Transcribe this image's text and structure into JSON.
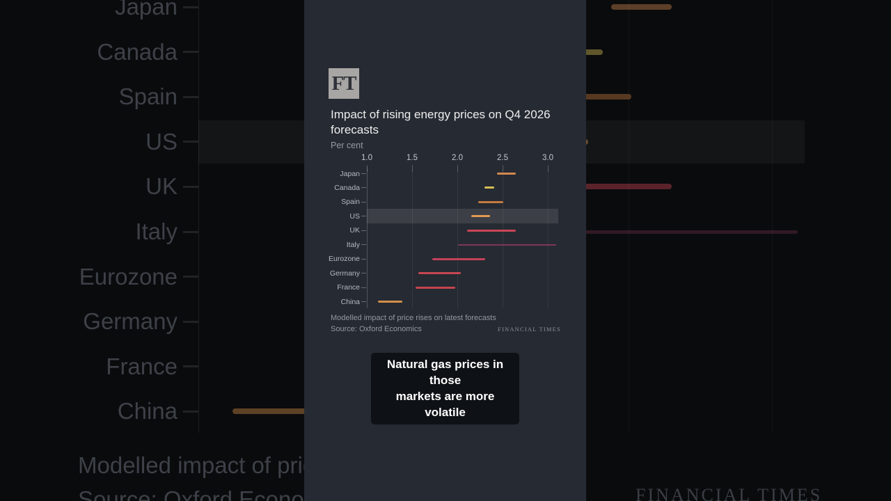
{
  "panel": {
    "logo_text": "FT",
    "title": "Impact of rising energy prices on Q4 2026 forecasts",
    "subtitle": "Per cent",
    "note": "Modelled impact of price rises on latest forecasts",
    "source": "Source: Oxford Economics",
    "brand_footer": "FINANCIAL TIMES"
  },
  "caption": {
    "line1": "Natural gas prices in those",
    "line2": "markets are more volatile"
  },
  "chart_data": {
    "type": "bar",
    "subtype": "horizontal-range",
    "title": "Impact of rising energy prices on Q4 2026 forecasts",
    "unit_label": "Per cent",
    "note": "Modelled impact of price rises on latest forecasts",
    "source": "Oxford Economics",
    "xlim": [
      1.0,
      3.0
    ],
    "x_ticks": [
      1.0,
      1.5,
      2.0,
      2.5,
      3.0
    ],
    "grid": "vertical",
    "legend": "none",
    "highlighted_category": "US",
    "thin_categories": [
      "Italy"
    ],
    "categories": [
      "Japan",
      "Canada",
      "Spain",
      "US",
      "UK",
      "Italy",
      "Eurozone",
      "Germany",
      "France",
      "China"
    ],
    "ranges": [
      [
        2.44,
        2.65
      ],
      [
        2.3,
        2.41
      ],
      [
        2.23,
        2.51
      ],
      [
        2.15,
        2.36
      ],
      [
        2.11,
        2.65
      ],
      [
        2.01,
        3.09
      ],
      [
        1.72,
        2.31
      ],
      [
        1.57,
        2.04
      ],
      [
        1.54,
        1.98
      ],
      [
        1.12,
        1.39
      ]
    ],
    "colors": [
      "#d28950",
      "#d6bf55",
      "#c47a3e",
      "#e29a52",
      "#ca4656",
      "#8e3a5d",
      "#c4425a",
      "#c74751",
      "#c6444e",
      "#d38e4b"
    ],
    "highlight_band_color_hex": "#ffffff"
  }
}
